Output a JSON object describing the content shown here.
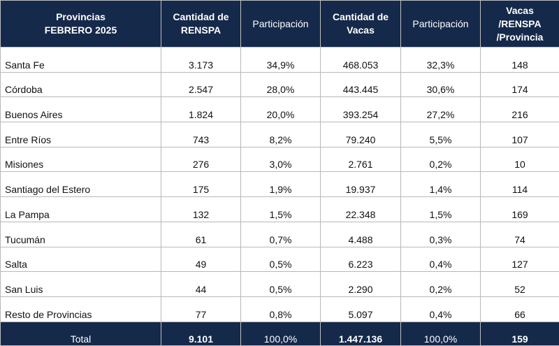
{
  "header": {
    "provincias": "Provincias",
    "periodo": "FEBRERO 2025",
    "cantidad_renspa": "Cantidad de RENSPA",
    "participacion_1": "Participación",
    "cantidad_vacas": "Cantidad de Vacas",
    "participacion_2": "Participación",
    "vacas_renspa": "Vacas /RENSPA /Provincia"
  },
  "rows": [
    {
      "provincia": "Santa Fe",
      "renspa": "3.173",
      "part_renspa": "34,9%",
      "vacas": "468.053",
      "part_vacas": "32,3%",
      "ratio": "148"
    },
    {
      "provincia": "Córdoba",
      "renspa": "2.547",
      "part_renspa": "28,0%",
      "vacas": "443.445",
      "part_vacas": "30,6%",
      "ratio": "174"
    },
    {
      "provincia": "Buenos Aires",
      "renspa": "1.824",
      "part_renspa": "20,0%",
      "vacas": "393.254",
      "part_vacas": "27,2%",
      "ratio": "216"
    },
    {
      "provincia": "Entre Ríos",
      "renspa": "743",
      "part_renspa": "8,2%",
      "vacas": "79.240",
      "part_vacas": "5,5%",
      "ratio": "107"
    },
    {
      "provincia": "Misiones",
      "renspa": "276",
      "part_renspa": "3,0%",
      "vacas": "2.761",
      "part_vacas": "0,2%",
      "ratio": "10"
    },
    {
      "provincia": "Santiago del Estero",
      "renspa": "175",
      "part_renspa": "1,9%",
      "vacas": "19.937",
      "part_vacas": "1,4%",
      "ratio": "114"
    },
    {
      "provincia": "La Pampa",
      "renspa": "132",
      "part_renspa": "1,5%",
      "vacas": "22.348",
      "part_vacas": "1,5%",
      "ratio": "169"
    },
    {
      "provincia": "Tucumán",
      "renspa": "61",
      "part_renspa": "0,7%",
      "vacas": "4.488",
      "part_vacas": "0,3%",
      "ratio": "74"
    },
    {
      "provincia": "Salta",
      "renspa": "49",
      "part_renspa": "0,5%",
      "vacas": "6.223",
      "part_vacas": "0,4%",
      "ratio": "127"
    },
    {
      "provincia": "San Luis",
      "renspa": "44",
      "part_renspa": "0,5%",
      "vacas": "2.290",
      "part_vacas": "0,2%",
      "ratio": "52"
    },
    {
      "provincia": "Resto de Provincias",
      "renspa": "77",
      "part_renspa": "0,8%",
      "vacas": "5.097",
      "part_vacas": "0,4%",
      "ratio": "66"
    }
  ],
  "total": {
    "label": "Total",
    "renspa": "9.101",
    "part_renspa": "100,0%",
    "vacas": "1.447.136",
    "part_vacas": "100,0%",
    "ratio": "159"
  },
  "colors": {
    "header_bg": "#15294a",
    "header_text": "#ffffff",
    "grid": "#b8b8b8"
  }
}
